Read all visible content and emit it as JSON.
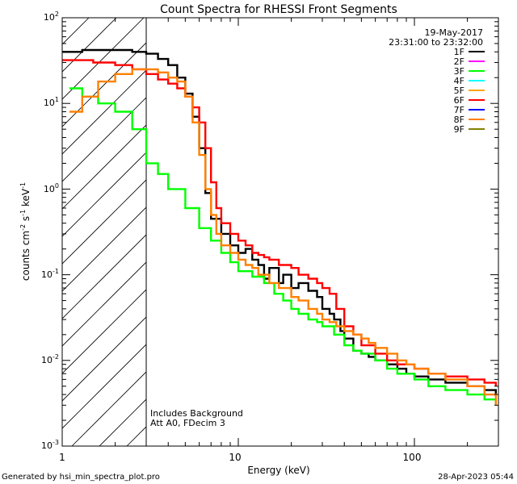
{
  "chart_data": {
    "type": "line",
    "title": "Count Spectra for RHESSI Front Segments",
    "date": "19-May-2017",
    "time_range": "23:31:00 to 23:32:00",
    "xlabel": "Energy (keV)",
    "ylabel": "counts cm-2 s-1 keV-1",
    "xscale": "log",
    "yscale": "log",
    "xlim": [
      1,
      300
    ],
    "ylim": [
      0.001,
      100
    ],
    "x_tick_labels": [
      "1",
      "10",
      "100"
    ],
    "y_tick_labels": [
      "10-3",
      "10-2",
      "10-1",
      "10 0",
      "10 1",
      "10 2"
    ],
    "hatched_region_max_energy": 3,
    "annotations": [
      "Includes Background",
      "Att A0, FDecim 3"
    ],
    "footer_left": "Generated by hsi_min_spectra_plot.pro",
    "footer_right": "28-Apr-2023 05:44",
    "legend": [
      {
        "name": "1F",
        "color": "#000000",
        "shown": true
      },
      {
        "name": "2F",
        "color": "#ff00ff",
        "shown": false
      },
      {
        "name": "3F",
        "color": "#00ff00",
        "shown": true
      },
      {
        "name": "4F",
        "color": "#00ffff",
        "shown": false
      },
      {
        "name": "5F",
        "color": "#ffa500",
        "shown": false
      },
      {
        "name": "6F",
        "color": "#ff0000",
        "shown": true
      },
      {
        "name": "7F",
        "color": "#0000ff",
        "shown": false
      },
      {
        "name": "8F",
        "color": "#ff8000",
        "shown": true
      },
      {
        "name": "9F",
        "color": "#808000",
        "shown": false
      }
    ],
    "series": [
      {
        "name": "1F",
        "color": "#000000",
        "points": [
          [
            1,
            40
          ],
          [
            1.3,
            42
          ],
          [
            2.5,
            40
          ],
          [
            3.0,
            38
          ],
          [
            3.5,
            33
          ],
          [
            4.0,
            28
          ],
          [
            4.5,
            20
          ],
          [
            5.0,
            13
          ],
          [
            5.5,
            7
          ],
          [
            6.0,
            3
          ],
          [
            6.5,
            0.9
          ],
          [
            7.0,
            0.45
          ],
          [
            8.0,
            0.3
          ],
          [
            9.0,
            0.22
          ],
          [
            10.0,
            0.18
          ],
          [
            11,
            0.2
          ],
          [
            12,
            0.15
          ],
          [
            13,
            0.13
          ],
          [
            14,
            0.09
          ],
          [
            15,
            0.12
          ],
          [
            17,
            0.08
          ],
          [
            18,
            0.1
          ],
          [
            20,
            0.07
          ],
          [
            22,
            0.08
          ],
          [
            25,
            0.065
          ],
          [
            28,
            0.055
          ],
          [
            30,
            0.04
          ],
          [
            33,
            0.035
          ],
          [
            35,
            0.03
          ],
          [
            38,
            0.022
          ],
          [
            40,
            0.018
          ],
          [
            45,
            0.013
          ],
          [
            50,
            0.012
          ],
          [
            55,
            0.011
          ],
          [
            60,
            0.01
          ],
          [
            70,
            0.009
          ],
          [
            80,
            0.008
          ],
          [
            90,
            0.007
          ],
          [
            100,
            0.0065
          ],
          [
            120,
            0.006
          ],
          [
            150,
            0.0055
          ],
          [
            200,
            0.005
          ],
          [
            250,
            0.0045
          ],
          [
            290,
            0.004
          ]
        ]
      },
      {
        "name": "3F",
        "color": "#00ff00",
        "points": [
          [
            1.1,
            15
          ],
          [
            1.3,
            12
          ],
          [
            1.6,
            10
          ],
          [
            2.0,
            8
          ],
          [
            2.5,
            5
          ],
          [
            3.0,
            2
          ],
          [
            3.5,
            1.5
          ],
          [
            4.0,
            1.0
          ],
          [
            5.0,
            0.6
          ],
          [
            6.0,
            0.35
          ],
          [
            7.0,
            0.25
          ],
          [
            8.0,
            0.18
          ],
          [
            9.0,
            0.14
          ],
          [
            10,
            0.11
          ],
          [
            12,
            0.095
          ],
          [
            14,
            0.08
          ],
          [
            16,
            0.06
          ],
          [
            18,
            0.05
          ],
          [
            20,
            0.04
          ],
          [
            22,
            0.035
          ],
          [
            25,
            0.03
          ],
          [
            28,
            0.028
          ],
          [
            30,
            0.025
          ],
          [
            35,
            0.02
          ],
          [
            40,
            0.015
          ],
          [
            45,
            0.013
          ],
          [
            50,
            0.012
          ],
          [
            60,
            0.01
          ],
          [
            70,
            0.008
          ],
          [
            80,
            0.007
          ],
          [
            100,
            0.006
          ],
          [
            120,
            0.005
          ],
          [
            150,
            0.0045
          ],
          [
            200,
            0.004
          ],
          [
            250,
            0.0035
          ],
          [
            290,
            0.003
          ]
        ]
      },
      {
        "name": "6F",
        "color": "#ff0000",
        "points": [
          [
            1,
            32
          ],
          [
            1.5,
            30
          ],
          [
            2.0,
            28
          ],
          [
            2.5,
            25
          ],
          [
            3.0,
            22
          ],
          [
            3.5,
            19
          ],
          [
            4.0,
            17
          ],
          [
            4.5,
            15
          ],
          [
            5.0,
            12
          ],
          [
            5.5,
            9
          ],
          [
            6.0,
            6
          ],
          [
            6.5,
            3
          ],
          [
            7.0,
            1.2
          ],
          [
            7.5,
            0.6
          ],
          [
            8.0,
            0.4
          ],
          [
            9.0,
            0.3
          ],
          [
            10,
            0.25
          ],
          [
            11,
            0.22
          ],
          [
            12,
            0.18
          ],
          [
            13,
            0.17
          ],
          [
            14,
            0.16
          ],
          [
            15,
            0.15
          ],
          [
            17,
            0.13
          ],
          [
            20,
            0.12
          ],
          [
            22,
            0.1
          ],
          [
            25,
            0.09
          ],
          [
            28,
            0.08
          ],
          [
            30,
            0.07
          ],
          [
            33,
            0.06
          ],
          [
            36,
            0.04
          ],
          [
            40,
            0.025
          ],
          [
            45,
            0.02
          ],
          [
            50,
            0.015
          ],
          [
            60,
            0.012
          ],
          [
            70,
            0.01
          ],
          [
            80,
            0.009
          ],
          [
            100,
            0.008
          ],
          [
            120,
            0.007
          ],
          [
            150,
            0.0065
          ],
          [
            200,
            0.006
          ],
          [
            250,
            0.0055
          ],
          [
            290,
            0.005
          ]
        ]
      },
      {
        "name": "8F",
        "color": "#ff8000",
        "points": [
          [
            1.1,
            8
          ],
          [
            1.3,
            12
          ],
          [
            1.6,
            18
          ],
          [
            2.0,
            22
          ],
          [
            2.5,
            25
          ],
          [
            3.0,
            25
          ],
          [
            3.5,
            23
          ],
          [
            4.0,
            20
          ],
          [
            4.5,
            18
          ],
          [
            5.0,
            12
          ],
          [
            5.5,
            6
          ],
          [
            6.0,
            2.5
          ],
          [
            6.5,
            1.0
          ],
          [
            7.0,
            0.5
          ],
          [
            7.5,
            0.3
          ],
          [
            8.0,
            0.22
          ],
          [
            9.0,
            0.18
          ],
          [
            10,
            0.15
          ],
          [
            11,
            0.13
          ],
          [
            12,
            0.12
          ],
          [
            13,
            0.1
          ],
          [
            15,
            0.08
          ],
          [
            17,
            0.07
          ],
          [
            20,
            0.055
          ],
          [
            22,
            0.05
          ],
          [
            25,
            0.04
          ],
          [
            28,
            0.035
          ],
          [
            30,
            0.03
          ],
          [
            33,
            0.028
          ],
          [
            36,
            0.025
          ],
          [
            40,
            0.022
          ],
          [
            45,
            0.02
          ],
          [
            50,
            0.018
          ],
          [
            55,
            0.016
          ],
          [
            60,
            0.014
          ],
          [
            70,
            0.012
          ],
          [
            80,
            0.01
          ],
          [
            90,
            0.009
          ],
          [
            100,
            0.008
          ],
          [
            120,
            0.007
          ],
          [
            150,
            0.006
          ],
          [
            200,
            0.005
          ],
          [
            250,
            0.004
          ],
          [
            290,
            0.003
          ]
        ]
      }
    ]
  }
}
